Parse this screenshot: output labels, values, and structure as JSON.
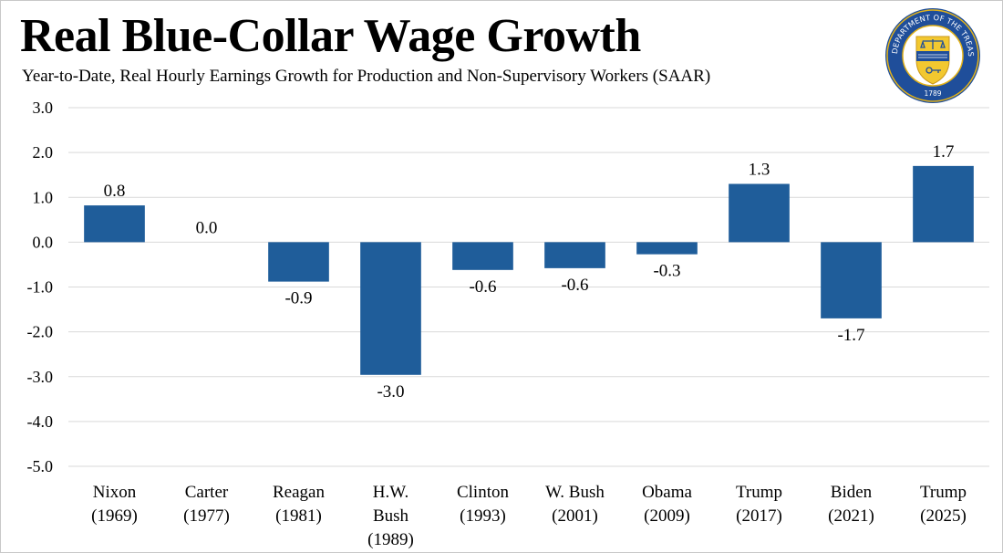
{
  "header": {
    "title": "Real Blue-Collar Wage Growth",
    "subtitle": "Year-to-Date, Real Hourly Earnings Growth for Production and Non-Supervisory Workers (SAAR)"
  },
  "seal": {
    "ring_text": "THE DEPARTMENT OF THE TREASURY",
    "year": "1789",
    "colors": {
      "ring": "#1f4e9a",
      "shield": "#f2c830",
      "outline": "#e2b21a"
    }
  },
  "chart_data": {
    "type": "bar",
    "title": "Real Blue-Collar Wage Growth",
    "subtitle": "Year-to-Date, Real Hourly Earnings Growth for Production and Non-Supervisory Workers (SAAR)",
    "xlabel": "",
    "ylabel": "",
    "categories": [
      [
        "Nixon",
        "(1969)"
      ],
      [
        "Carter",
        "(1977)"
      ],
      [
        "Reagan",
        "(1981)"
      ],
      [
        "H.W.",
        "Bush",
        "(1989)"
      ],
      [
        "Clinton",
        "(1993)"
      ],
      [
        "W. Bush",
        "(2001)"
      ],
      [
        "Obama",
        "(2009)"
      ],
      [
        "Trump",
        "(2017)"
      ],
      [
        "Biden",
        "(2021)"
      ],
      [
        "Trump",
        "(2025)"
      ]
    ],
    "values": [
      0.82,
      0.0,
      -0.88,
      -2.96,
      -0.62,
      -0.58,
      -0.27,
      1.3,
      -1.7,
      1.7
    ],
    "data_labels": [
      "0.8",
      "0.0",
      "-0.9",
      "-3.0",
      "-0.6",
      "-0.6",
      "-0.3",
      "1.3",
      "-1.7",
      "1.7"
    ],
    "ylim": [
      -5.0,
      3.0
    ],
    "yticks": [
      3.0,
      2.0,
      1.0,
      0.0,
      -1.0,
      -2.0,
      -3.0,
      -4.0,
      -5.0
    ],
    "ytick_labels": [
      "3.0",
      "2.0",
      "1.0",
      "0.0",
      "-1.0",
      "-2.0",
      "-3.0",
      "-4.0",
      "-5.0"
    ],
    "grid": true,
    "legend": "none",
    "bar_color": "#1f5d9a",
    "grid_color": "#d9d9d9"
  }
}
